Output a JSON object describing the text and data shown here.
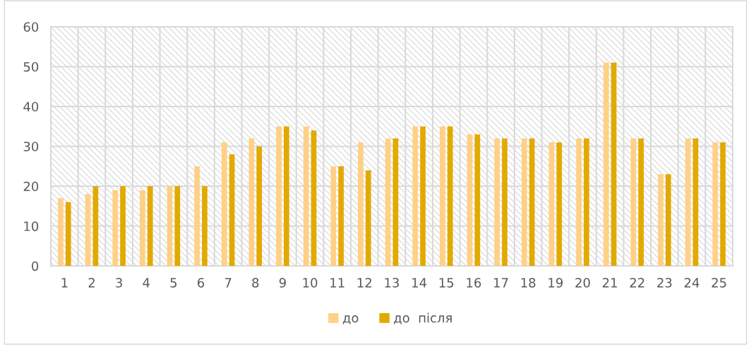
{
  "chart_data": {
    "type": "bar",
    "categories": [
      "1",
      "2",
      "3",
      "4",
      "5",
      "6",
      "7",
      "8",
      "9",
      "10",
      "11",
      "12",
      "13",
      "14",
      "15",
      "16",
      "17",
      "18",
      "19",
      "20",
      "21",
      "22",
      "23",
      "24",
      "25"
    ],
    "series": [
      {
        "name": "до",
        "color": "#ffd086",
        "values": [
          17,
          18,
          19,
          19,
          20,
          25,
          31,
          32,
          35,
          35,
          25,
          31,
          32,
          35,
          35,
          33,
          32,
          32,
          31,
          32,
          51,
          32,
          23,
          32,
          31
        ]
      },
      {
        "name": "до  після",
        "color": "#e2aa00",
        "values": [
          16,
          20,
          20,
          20,
          20,
          20,
          28,
          30,
          35,
          34,
          25,
          24,
          32,
          35,
          35,
          33,
          32,
          32,
          31,
          32,
          51,
          32,
          23,
          32,
          31
        ]
      }
    ],
    "ylim": [
      0,
      60
    ],
    "yticks": [
      0,
      10,
      20,
      30,
      40,
      50,
      60
    ],
    "grid": true,
    "legend": "bottom"
  }
}
